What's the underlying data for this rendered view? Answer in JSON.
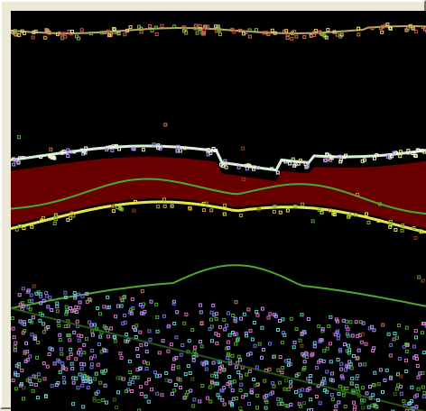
{
  "viewer": {
    "frame_color": "#ece9d8",
    "background_color": "#000000",
    "layer_colors": {
      "surface": "#e8d27a",
      "bright_band": "#d8f0d8",
      "dark_red_band": "#8b0000",
      "yellow_line": "#e6e64c",
      "green_line": "#4fa82a",
      "speckle_violet": "#c090ff",
      "speckle_pink": "#e070c0",
      "speckle_cyan": "#60d0d0"
    }
  }
}
